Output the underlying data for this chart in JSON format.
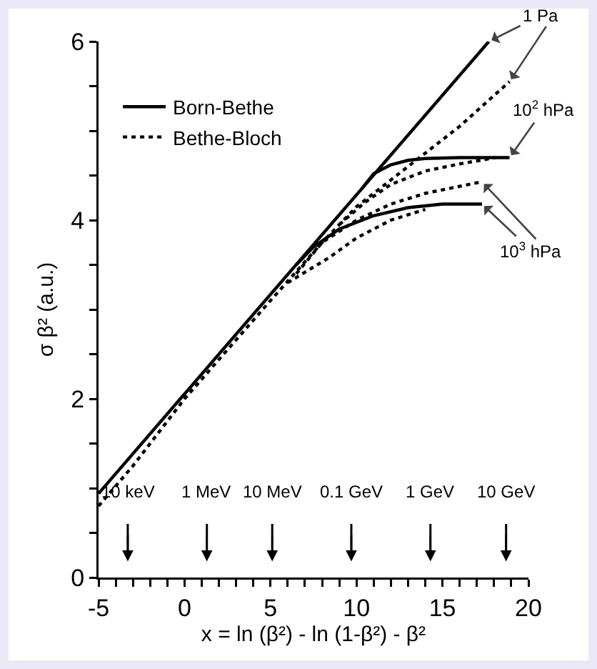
{
  "chart_data": {
    "type": "line",
    "xlabel": "x = ln (β²) - ln (1-β²) - β²",
    "ylabel": "σ β² (a.u.)",
    "xlim": [
      -5,
      20
    ],
    "xticks": [
      -5,
      {
        "value": -4,
        "label": null
      },
      {
        "value": -3,
        "label": null
      },
      {
        "value": -2,
        "label": null
      },
      {
        "value": -1,
        "label": null
      },
      0,
      {
        "value": 1,
        "label": null
      },
      {
        "value": 2,
        "label": null
      },
      {
        "value": 3,
        "label": null
      },
      {
        "value": 4,
        "label": null
      },
      5,
      {
        "value": 6,
        "label": null
      },
      {
        "value": 7,
        "label": null
      },
      {
        "value": 8,
        "label": null
      },
      {
        "value": 9,
        "label": null
      },
      10,
      {
        "value": 11,
        "label": null
      },
      {
        "value": 12,
        "label": null
      },
      {
        "value": 13,
        "label": null
      },
      {
        "value": 14,
        "label": null
      },
      15,
      {
        "value": 16,
        "label": null
      },
      {
        "value": 17,
        "label": null
      },
      {
        "value": 18,
        "label": null
      },
      {
        "value": 19,
        "label": null
      },
      20
    ],
    "ylim": [
      0,
      6
    ],
    "yticks": [
      0,
      {
        "value": 0.5,
        "label": null
      },
      {
        "value": 1,
        "label": null
      },
      {
        "value": 1.5,
        "label": null
      },
      2,
      {
        "value": 2.5,
        "label": null
      },
      {
        "value": 3,
        "label": null
      },
      {
        "value": 3.5,
        "label": null
      },
      4,
      {
        "value": 4.5,
        "label": null
      },
      {
        "value": 5,
        "label": null
      },
      {
        "value": 5.5,
        "label": null
      },
      6
    ],
    "grid": false,
    "legend": "top left",
    "marker": "none",
    "series": [
      {
        "name": "Born-Bethe",
        "color": "#000000",
        "line_style": "solid",
        "x": [
          -5,
          17.7
        ],
        "values": [
          0.94,
          6
        ]
      },
      {
        "color": "#000000",
        "line_style": "solid",
        "x": [
          10.3,
          11,
          12,
          13,
          14,
          16,
          18.9
        ],
        "values": [
          4.35,
          4.52,
          4.62,
          4.67,
          4.69,
          4.7,
          4.7
        ]
      },
      {
        "color": "#000000",
        "line_style": "solid",
        "x": [
          6.5,
          7.5,
          9,
          11,
          13,
          15,
          17.3
        ],
        "values": [
          3.5,
          3.7,
          3.9,
          4.05,
          4.14,
          4.18,
          4.18
        ]
      },
      {
        "name": "Bethe-Bloch",
        "color": "#000000",
        "line_style": "dotted",
        "x": [
          -5,
          -3,
          -1,
          0,
          5,
          8,
          10,
          13,
          16,
          18.9
        ],
        "values": [
          0.8,
          1.25,
          1.75,
          2.0,
          3.1,
          3.75,
          4.15,
          4.6,
          5.05,
          5.55
        ]
      },
      {
        "color": "#000000",
        "line_style": "dotted",
        "x": [
          9,
          10.5,
          12,
          14,
          16,
          18.1
        ],
        "values": [
          3.95,
          4.2,
          4.4,
          4.55,
          4.63,
          4.7
        ]
      },
      {
        "color": "#000000",
        "line_style": "dotted",
        "x": [
          6.5,
          8,
          10,
          12,
          14,
          17.3
        ],
        "values": [
          3.4,
          3.75,
          4.0,
          4.18,
          4.3,
          4.43
        ]
      },
      {
        "color": "#000000",
        "line_style": "dotted",
        "x": [
          6,
          8.4,
          10,
          12,
          14
        ],
        "values": [
          3.3,
          3.58,
          3.8,
          4.0,
          4.12
        ]
      }
    ],
    "annotations": [
      {
        "text": "1 Pa",
        "x": 17.7,
        "y": 6
      },
      {
        "text": "10$^{2}$ hPa",
        "x": 18.9,
        "y": 4.7
      },
      {
        "text": "10$^{3}$ hPa",
        "x": 17.3,
        "y": 4.18
      }
    ],
    "ref_lines": [
      {
        "axis": "x",
        "value": -3.3,
        "label": "10 keV"
      },
      {
        "axis": "x",
        "value": 1.3,
        "label": "1 MeV"
      },
      {
        "axis": "x",
        "value": 5.1,
        "label": "10 MeV"
      },
      {
        "axis": "x",
        "value": 9.7,
        "label": "0.1 GeV"
      },
      {
        "axis": "x",
        "value": 14.3,
        "label": "1 GeV"
      },
      {
        "axis": "x",
        "value": 18.7,
        "label": "10 GeV"
      }
    ]
  }
}
